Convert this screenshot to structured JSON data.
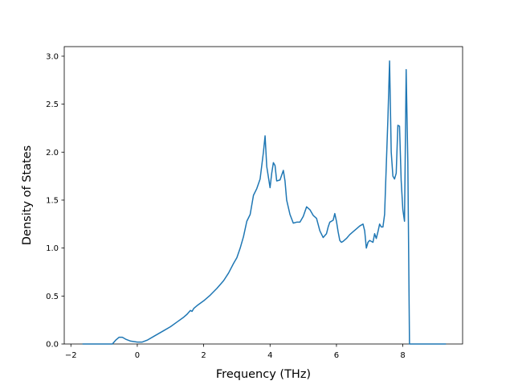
{
  "chart_data": {
    "type": "line",
    "title": "",
    "xlabel": "Frequency (THz)",
    "ylabel": "Density of States",
    "xlim": [
      -2.2,
      9.8
    ],
    "ylim": [
      0,
      3.1
    ],
    "xticks": [
      -2,
      0,
      2,
      4,
      6,
      8
    ],
    "xtick_labels": [
      "−2",
      "0",
      "2",
      "4",
      "6",
      "8"
    ],
    "yticks": [
      0.0,
      0.5,
      1.0,
      1.5,
      2.0,
      2.5,
      3.0
    ],
    "ytick_labels": [
      "0.0",
      "0.5",
      "1.0",
      "1.5",
      "2.0",
      "2.5",
      "3.0"
    ],
    "grid": false,
    "legend": "none",
    "line_color": "#1f77b4",
    "series": [
      {
        "x": [
          -1.65,
          -0.75,
          -0.65,
          -0.55,
          -0.45,
          -0.35,
          -0.2,
          0.0,
          0.15,
          0.3,
          0.5,
          0.8,
          1.0,
          1.2,
          1.4,
          1.5,
          1.55,
          1.6,
          1.65,
          1.7,
          1.8,
          2.0,
          2.2,
          2.4,
          2.6,
          2.75,
          2.9,
          3.0,
          3.1,
          3.2,
          3.3,
          3.4,
          3.5,
          3.6,
          3.7,
          3.8,
          3.85,
          3.9,
          4.0,
          4.05,
          4.1,
          4.15,
          4.2,
          4.3,
          4.4,
          4.45,
          4.5,
          4.6,
          4.7,
          4.8,
          4.9,
          5.0,
          5.1,
          5.2,
          5.3,
          5.4,
          5.5,
          5.6,
          5.7,
          5.75,
          5.8,
          5.9,
          5.95,
          6.0,
          6.05,
          6.1,
          6.15,
          6.2,
          6.3,
          6.4,
          6.5,
          6.6,
          6.7,
          6.8,
          6.85,
          6.9,
          6.95,
          7.0,
          7.1,
          7.15,
          7.2,
          7.25,
          7.3,
          7.35,
          7.4,
          7.45,
          7.5,
          7.55,
          7.6,
          7.65,
          7.7,
          7.75,
          7.8,
          7.85,
          7.9,
          7.95,
          8.0,
          8.05,
          8.1,
          8.15,
          8.2,
          8.25,
          8.3,
          8.35,
          8.4,
          8.45,
          8.5,
          9.3
        ],
        "y": [
          0.0,
          0.0,
          0.04,
          0.07,
          0.07,
          0.05,
          0.03,
          0.02,
          0.02,
          0.04,
          0.08,
          0.14,
          0.18,
          0.23,
          0.28,
          0.31,
          0.33,
          0.35,
          0.34,
          0.37,
          0.4,
          0.45,
          0.51,
          0.58,
          0.66,
          0.74,
          0.84,
          0.9,
          1.0,
          1.12,
          1.28,
          1.35,
          1.55,
          1.62,
          1.72,
          2.0,
          2.17,
          1.85,
          1.63,
          1.78,
          1.89,
          1.86,
          1.7,
          1.71,
          1.81,
          1.7,
          1.5,
          1.35,
          1.26,
          1.27,
          1.27,
          1.33,
          1.43,
          1.4,
          1.34,
          1.31,
          1.18,
          1.11,
          1.15,
          1.22,
          1.27,
          1.29,
          1.36,
          1.28,
          1.17,
          1.08,
          1.06,
          1.07,
          1.1,
          1.14,
          1.17,
          1.2,
          1.23,
          1.25,
          1.18,
          1.0,
          1.06,
          1.08,
          1.06,
          1.15,
          1.1,
          1.17,
          1.25,
          1.22,
          1.22,
          1.35,
          1.85,
          2.35,
          2.95,
          2.0,
          1.75,
          1.72,
          1.78,
          2.28,
          2.27,
          1.7,
          1.4,
          1.28,
          2.86,
          1.9,
          0.0,
          0.0,
          0.0,
          0.0,
          0.0,
          0.0,
          0.0,
          0.0
        ]
      }
    ]
  }
}
